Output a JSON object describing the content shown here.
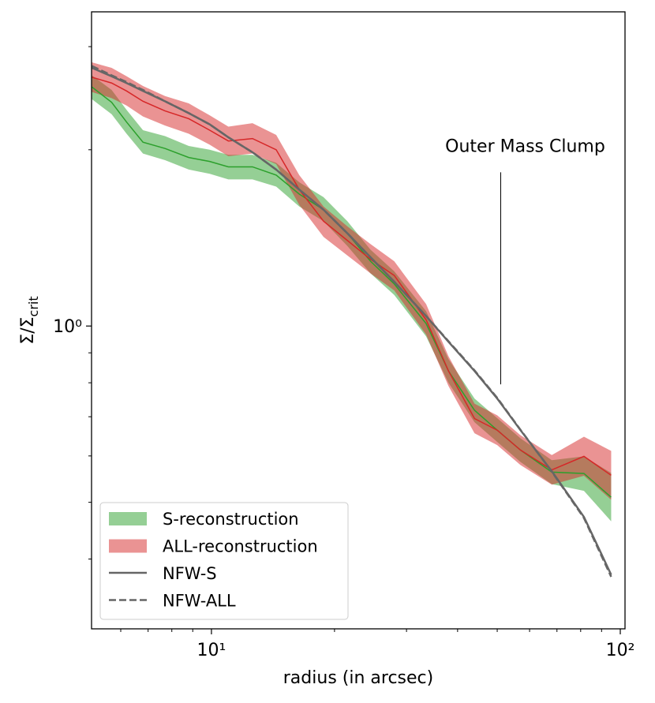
{
  "chart_data": {
    "type": "line",
    "xlabel": "radius (in arcsec)",
    "ylabel": "Σ/Σ",
    "ylabel_sub": "crit",
    "xscale": "log",
    "yscale": "log",
    "xlim": [
      5.09,
      102.7
    ],
    "ylim": [
      0.304,
      3.44
    ],
    "xticks": [
      {
        "value": 10,
        "label": "10¹"
      },
      {
        "value": 100,
        "label": "10²"
      }
    ],
    "yticks": [
      {
        "value": 1,
        "label": "10⁰"
      }
    ],
    "xminorticks": [
      6,
      7,
      8,
      9,
      20,
      30,
      40,
      50,
      60,
      70,
      80,
      90
    ],
    "yminorticks": [
      0.4,
      0.5,
      0.6,
      0.7,
      0.8,
      0.9,
      2,
      3
    ],
    "legend": "lower left",
    "x": [
      5.1,
      5.7,
      6.2,
      6.8,
      7.7,
      8.8,
      9.9,
      11,
      12.6,
      14.4,
      16.4,
      18.8,
      21.5,
      24.5,
      28,
      33.5,
      38,
      44,
      50,
      57,
      68,
      81.5,
      95
    ],
    "series": [
      {
        "name": "S-reconstruction",
        "color": "#2ca02c",
        "values": [
          2.56,
          2.41,
          2.23,
          2.06,
          2.01,
          1.94,
          1.91,
          1.87,
          1.87,
          1.81,
          1.68,
          1.58,
          1.44,
          1.29,
          1.18,
          1.01,
          0.838,
          0.718,
          0.664,
          0.614,
          0.563,
          0.56,
          0.51
        ],
        "lower": [
          2.44,
          2.3,
          2.13,
          1.97,
          1.92,
          1.85,
          1.82,
          1.78,
          1.78,
          1.73,
          1.6,
          1.51,
          1.37,
          1.23,
          1.13,
          0.96,
          0.8,
          0.685,
          0.634,
          0.586,
          0.537,
          0.523,
          0.464
        ],
        "upper": [
          2.68,
          2.53,
          2.34,
          2.16,
          2.11,
          2.03,
          2.0,
          1.96,
          1.96,
          1.9,
          1.76,
          1.66,
          1.51,
          1.35,
          1.24,
          1.06,
          0.878,
          0.752,
          0.696,
          0.643,
          0.59,
          0.599,
          0.561
        ]
      },
      {
        "name": "ALL-reconstruction",
        "color": "#d62728",
        "values": [
          2.66,
          2.6,
          2.52,
          2.42,
          2.33,
          2.26,
          2.16,
          2.07,
          2.09,
          2.0,
          1.71,
          1.51,
          1.4,
          1.3,
          1.22,
          1.025,
          0.838,
          0.695,
          0.664,
          0.614,
          0.568,
          0.599,
          0.556
        ],
        "lower": [
          2.51,
          2.45,
          2.38,
          2.28,
          2.2,
          2.13,
          2.04,
          1.95,
          1.97,
          1.89,
          1.61,
          1.42,
          1.32,
          1.23,
          1.15,
          0.967,
          0.79,
          0.656,
          0.626,
          0.579,
          0.536,
          0.555,
          0.505
        ],
        "upper": [
          2.82,
          2.76,
          2.67,
          2.57,
          2.47,
          2.4,
          2.29,
          2.19,
          2.22,
          2.12,
          1.81,
          1.6,
          1.48,
          1.38,
          1.29,
          1.09,
          0.888,
          0.737,
          0.704,
          0.651,
          0.602,
          0.647,
          0.612
        ]
      },
      {
        "name": "NFW-S",
        "color": "#666666",
        "linestyle": "solid",
        "values": [
          2.76,
          2.67,
          2.6,
          2.52,
          2.42,
          2.31,
          2.21,
          2.1,
          1.98,
          1.85,
          1.71,
          1.58,
          1.44,
          1.31,
          1.19,
          1.04,
          0.94,
          0.838,
          0.752,
          0.664,
          0.565,
          0.472,
          0.376
        ]
      },
      {
        "name": "NFW-ALL",
        "color": "#666666",
        "linestyle": "dashed",
        "values": [
          2.78,
          2.68,
          2.61,
          2.53,
          2.42,
          2.31,
          2.21,
          2.1,
          1.98,
          1.85,
          1.71,
          1.58,
          1.44,
          1.31,
          1.19,
          1.04,
          0.942,
          0.84,
          0.754,
          0.665,
          0.564,
          0.47,
          0.373
        ]
      }
    ],
    "annotation": {
      "text": "Outer Mass Clump",
      "x": 51,
      "y": [
        0.795,
        1.83
      ]
    }
  }
}
